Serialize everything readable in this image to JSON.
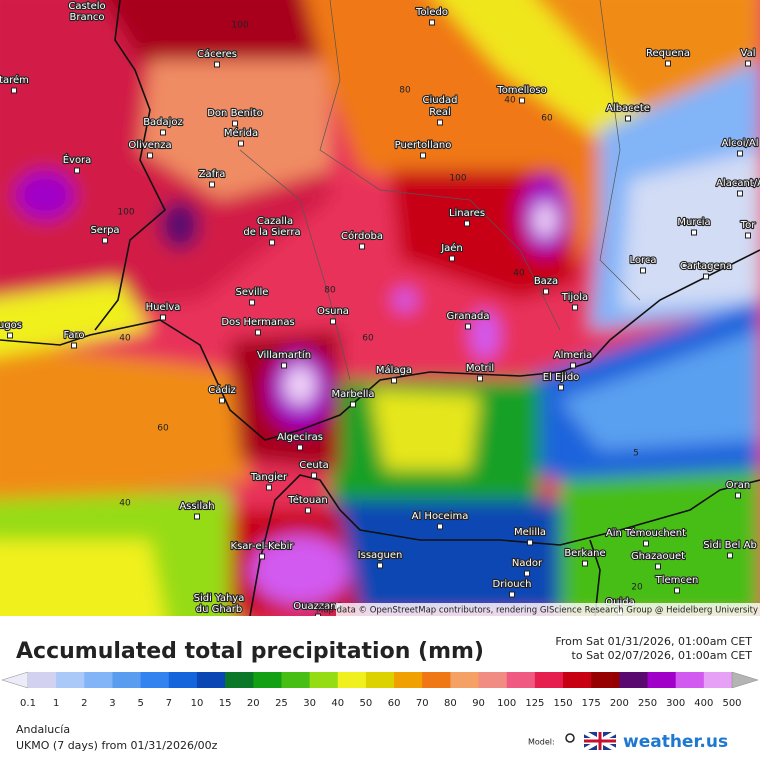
{
  "map": {
    "cities": [
      "Castelo",
      "Branco",
      "Toledo",
      "Cáceres",
      "tarém",
      "Don Benito",
      "Ciudad",
      "Real",
      "Tomelloso",
      "Albacete",
      "Requena",
      "Val",
      "Badajoz",
      "Mérida",
      "Olivenza",
      "Puertollano",
      "Alcoi/Al",
      "Évora",
      "Zafra",
      "Alacant/A",
      "Cazalla",
      "de la Sierra",
      "Linares",
      "Murcia",
      "Tor",
      "Serpa",
      "Córdoba",
      "Jaén",
      "Lorca",
      "Cartagena",
      "Huelva",
      "Seville",
      "Baza",
      "Tijola",
      "ugos",
      "Faro",
      "Dos Hermanas",
      "Osuna",
      "Granada",
      "Almeria",
      "Villamartín",
      "Málaga",
      "Motril",
      "El Ejido",
      "Cádiz",
      "Marbella",
      "Algeciras",
      "Tangier",
      "Ceuta",
      "Oran",
      "Tétouan",
      "Assilah",
      "Al Hoceima",
      "Melilla",
      "Aïn Témouchent",
      "Sidi Bel Ab",
      "Ksar-el-Kebir",
      "Issaguen",
      "Nador",
      "Berkane",
      "Ghazaouet",
      "Driouch",
      "Tlemcen",
      "Sidi Yahya",
      "du Gharb",
      "Ouazzane",
      "Oujda"
    ],
    "contour_labels": [
      100,
      80,
      40,
      60,
      100,
      100,
      40,
      80,
      60,
      40,
      60,
      40,
      5,
      20
    ],
    "attribution": "Map data © OpenStreetMap contributors, rendering GIScience Research Group @ Heidelberg University"
  },
  "legend": {
    "title": "Accumulated total precipitation (mm)",
    "from": "From Sat 01/31/2026, 01:00am CET",
    "to": "to Sat 02/07/2026, 01:00am CET",
    "ticks": [
      0.1,
      1,
      2,
      3,
      5,
      7,
      10,
      15,
      20,
      25,
      30,
      40,
      50,
      60,
      70,
      80,
      90,
      100,
      125,
      150,
      175,
      200,
      250,
      300,
      400,
      500
    ],
    "colors": [
      "#ececf8",
      "#d2d2f0",
      "#aac8f8",
      "#82b4f8",
      "#5a9cf0",
      "#3282f0",
      "#1464dc",
      "#0a46b4",
      "#0a7828",
      "#14a014",
      "#46be14",
      "#96dc14",
      "#f0f01e",
      "#dcd200",
      "#f0a000",
      "#f07814",
      "#f5a064",
      "#f08c82",
      "#f05a82",
      "#e61e50",
      "#c80014",
      "#960000",
      "#5a0a6e",
      "#a000c8",
      "#d25af0",
      "#e6a0f5",
      "#b4b4b4"
    ]
  },
  "footer": {
    "region": "Andalucía",
    "model_run": "UKMO (7 days) from  01/31/2026/00z",
    "model_label": "Model:",
    "brand": "weather.us"
  }
}
